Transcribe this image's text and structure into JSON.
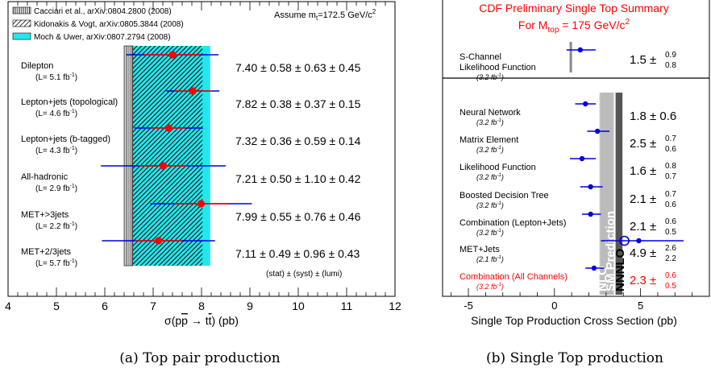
{
  "chart_data": [
    {
      "type": "scatter",
      "xlabel_prefix": "σ(p",
      "xlabel_pbar": "p",
      "xlabel_mid": " → t",
      "xlabel_tbar": "t",
      "xlabel_suffix": ") (pb)",
      "xlim": [
        4,
        12
      ],
      "xticks": [
        4,
        5,
        6,
        7,
        8,
        9,
        10,
        11,
        12
      ],
      "assumption": "Assume m",
      "assumption_sub": "t",
      "assumption_val": "=172.5 GeV/c",
      "assumption_sup": "2",
      "legend": [
        {
          "label": "Cacciari et al., arXiv:0804.2800 (2008)",
          "style": "vertical-hatch",
          "band": [
            6.4,
            6.58
          ]
        },
        {
          "label": "Kidonakis & Vogt, arXiv:0805.3844 (2008)",
          "style": "diagonal-hatch",
          "band": [
            6.58,
            8.02
          ]
        },
        {
          "label": "Moch & Uwer, arXiv:0807.2794 (2008)",
          "style": "cyan",
          "band": [
            6.58,
            8.18
          ]
        }
      ],
      "band_colors": {
        "cyan": "#22e8ee",
        "hatch": "#1a1a1a"
      },
      "measurements": [
        {
          "name": "Dilepton",
          "lumi_pre": "(L= 5.1 fb",
          "lumi_sup": "-1",
          "lumi_post": ")",
          "value": 7.4,
          "stat": 0.58,
          "total": 0.95,
          "text": "7.40 ± 0.58 ± 0.63 ± 0.45"
        },
        {
          "name": "Lepton+jets (topological)",
          "lumi_pre": "(L= 4.6 fb",
          "lumi_sup": "-1",
          "lumi_post": ")",
          "value": 7.82,
          "stat": 0.38,
          "total": 0.55,
          "text": "7.82 ± 0.38 ± 0.37 ± 0.15"
        },
        {
          "name": "Lepton+jets (b-tagged)",
          "lumi_pre": "(L= 4.3 fb",
          "lumi_sup": "-1",
          "lumi_post": ")",
          "value": 7.32,
          "stat": 0.36,
          "total": 0.71,
          "text": "7.32 ± 0.36 ± 0.59 ± 0.14"
        },
        {
          "name": "All-hadronic",
          "lumi_pre": "(L= 2.9 fb",
          "lumi_sup": "-1",
          "lumi_post": ")",
          "value": 7.21,
          "stat": 0.5,
          "total": 1.29,
          "text": "7.21 ± 0.50 ± 1.10 ± 0.42"
        },
        {
          "name": "MET+>3jets",
          "lumi_pre": "(L= 2.2 fb",
          "lumi_sup": "-1",
          "lumi_post": ")",
          "value": 7.99,
          "stat": 0.55,
          "total": 1.05,
          "text": "7.99 ± 0.55 ± 0.76 ± 0.46"
        },
        {
          "name": "MET+2/3jets",
          "lumi_pre": "(L= 5.7 fb",
          "lumi_sup": "-1",
          "lumi_post": ")",
          "value": 7.11,
          "stat": 0.49,
          "total": 1.17,
          "text": "7.11 ± 0.49 ± 0.96 ± 0.43"
        }
      ],
      "error_note": "(stat) ± (syst) ± (lumi)",
      "colors": {
        "marker": "#ff0000",
        "stat_bar": "#ff0000",
        "total_bar": "#0000dd"
      },
      "caption": "(a) Top pair production"
    },
    {
      "type": "scatter",
      "title_line1": "CDF Preliminary Single Top Summary",
      "title_line2_pre": "For M",
      "title_line2_sub": "top",
      "title_line2_post": " = 175 GeV/c",
      "title_line2_sup": "2",
      "xlabel": "Single Top Production Cross Section (pb)",
      "xlim": [
        -6.5,
        9
      ],
      "xticks": [
        -5,
        0,
        5
      ],
      "bands": [
        {
          "label": "NLO",
          "range": [
            2.6,
            3.35
          ],
          "color": "#dddddd"
        },
        {
          "label": "SM Prediction",
          "range": [
            2.65,
            3.45
          ],
          "color": "#bbbbbb"
        },
        {
          "label": "NNNLO",
          "range": [
            3.55,
            3.95
          ],
          "color": "#555555"
        }
      ],
      "top_band": {
        "range": [
          0.88,
          1.02
        ],
        "color": "#888888"
      },
      "measurements": [
        {
          "name_l1": "S-Channel",
          "name_l2": "Likelihood Function",
          "lumi_pre": "(3.2 fb",
          "lumi_sup": "-1",
          "lumi_post": ")",
          "value": 1.5,
          "up": 0.9,
          "down": 0.8,
          "val_text": "1.5 ±",
          "up_text": "0.9",
          "down_text": "0.8",
          "highlight": false
        },
        {
          "name_l1": "Neural Network",
          "name_l2": "",
          "lumi_pre": "(3.2 fb",
          "lumi_sup": "-1",
          "lumi_post": ")",
          "value": 1.8,
          "up": 0.6,
          "down": 0.6,
          "val_text": "1.8 ± 0.6",
          "up_text": "",
          "down_text": "",
          "highlight": false
        },
        {
          "name_l1": "Matrix Element",
          "name_l2": "",
          "lumi_pre": "(3.2 fb",
          "lumi_sup": "-1",
          "lumi_post": ")",
          "value": 2.5,
          "up": 0.7,
          "down": 0.6,
          "val_text": "2.5 ±",
          "up_text": "0.7",
          "down_text": "0.6",
          "highlight": false
        },
        {
          "name_l1": "Likelihood Function",
          "name_l2": "",
          "lumi_pre": "(3.2 fb",
          "lumi_sup": "-1",
          "lumi_post": ")",
          "value": 1.6,
          "up": 0.8,
          "down": 0.7,
          "val_text": "1.6 ±",
          "up_text": "0.8",
          "down_text": "0.7",
          "highlight": false
        },
        {
          "name_l1": "Boosted Decision Tree",
          "name_l2": "",
          "lumi_pre": "(3.2 fb",
          "lumi_sup": "-1",
          "lumi_post": ")",
          "value": 2.1,
          "up": 0.7,
          "down": 0.6,
          "val_text": "2.1 ±",
          "up_text": "0.7",
          "down_text": "0.6",
          "highlight": false
        },
        {
          "name_l1": "Combination (Lepton+Jets)",
          "name_l2": "",
          "lumi_pre": "(3.2 fb",
          "lumi_sup": "-1",
          "lumi_post": ")",
          "value": 2.1,
          "up": 0.6,
          "down": 0.5,
          "val_text": "2.1 ±",
          "up_text": "0.6",
          "down_text": "0.5",
          "highlight": false
        },
        {
          "name_l1": "MET+Jets",
          "name_l2": "",
          "lumi_pre": "(2.1 fb",
          "lumi_sup": "-1",
          "lumi_post": ")",
          "value": 4.9,
          "up": 2.6,
          "down": 2.2,
          "val_text": "4.9 ±",
          "up_text": "2.6",
          "down_text": "2.2",
          "highlight": false,
          "open_marker_at": 5.0
        },
        {
          "name_l1": "Combination (All Channels)",
          "name_l2": "",
          "lumi_pre": "(3.2 fb",
          "lumi_sup": "-1",
          "lumi_post": ")",
          "value": 2.3,
          "up": 0.6,
          "down": 0.5,
          "val_text": "2.3 ±",
          "up_text": "0.6",
          "down_text": "0.5",
          "highlight": true
        }
      ],
      "colors": {
        "title": "#ff0000",
        "marker": "#0000dd",
        "highlight": "#ff0000"
      },
      "caption": "(b) Single Top production"
    }
  ]
}
